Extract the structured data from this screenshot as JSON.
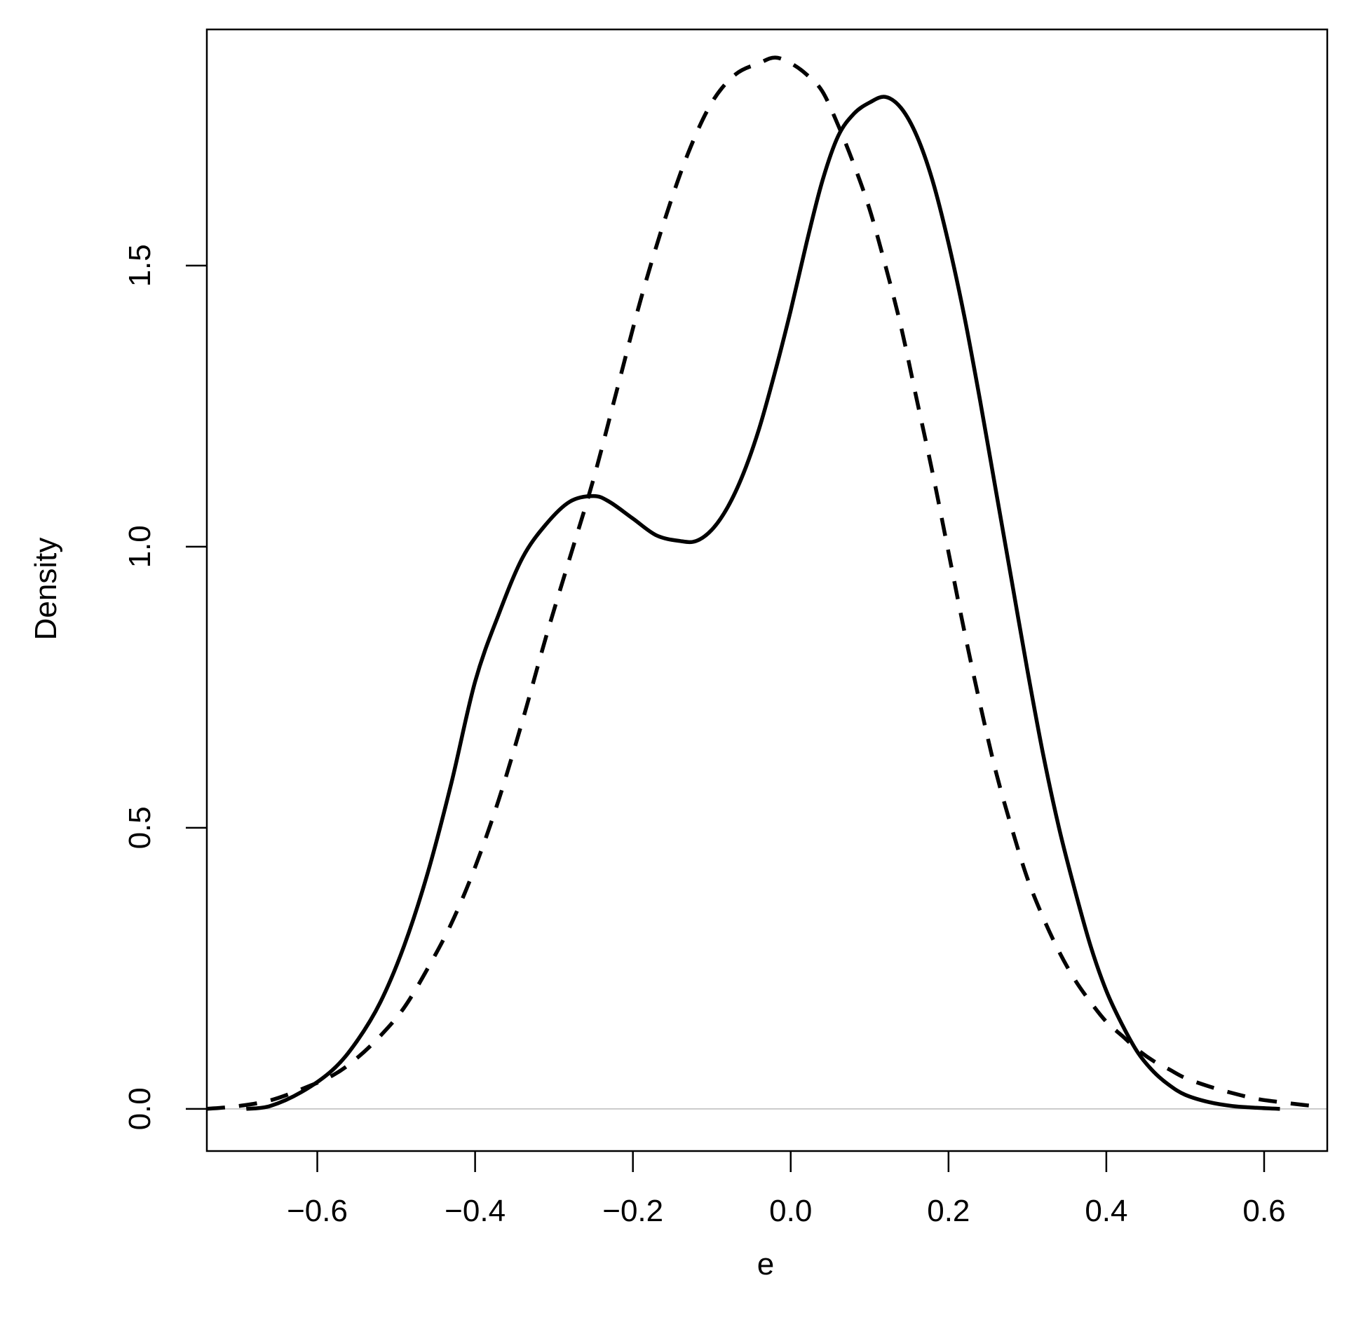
{
  "chart_data": {
    "type": "line",
    "title": "",
    "xlabel": "e",
    "ylabel": "Density",
    "xlim": [
      -0.74,
      0.68
    ],
    "ylim": [
      -0.075,
      1.92
    ],
    "x_ticks": [
      "−0.6",
      "−0.4",
      "−0.2",
      "0.0",
      "0.2",
      "0.4",
      "0.6"
    ],
    "x_tick_values": [
      -0.6,
      -0.4,
      -0.2,
      0.0,
      0.2,
      0.4,
      0.6
    ],
    "y_ticks": [
      "0.0",
      "0.5",
      "1.0",
      "1.5"
    ],
    "y_tick_values": [
      0.0,
      0.5,
      1.0,
      1.5
    ],
    "grid": false,
    "zero_line": true,
    "series": [
      {
        "line_style": "solid",
        "color": "#000000",
        "x": [
          -0.69,
          -0.66,
          -0.62,
          -0.58,
          -0.55,
          -0.52,
          -0.49,
          -0.46,
          -0.43,
          -0.4,
          -0.37,
          -0.34,
          -0.31,
          -0.28,
          -0.25,
          -0.23,
          -0.2,
          -0.17,
          -0.14,
          -0.12,
          -0.1,
          -0.08,
          -0.06,
          -0.04,
          -0.02,
          0.0,
          0.02,
          0.04,
          0.06,
          0.08,
          0.1,
          0.12,
          0.14,
          0.16,
          0.18,
          0.2,
          0.22,
          0.24,
          0.26,
          0.28,
          0.3,
          0.32,
          0.34,
          0.36,
          0.38,
          0.4,
          0.42,
          0.44,
          0.46,
          0.48,
          0.5,
          0.53,
          0.56,
          0.59,
          0.62
        ],
        "y": [
          0.0,
          0.005,
          0.03,
          0.07,
          0.12,
          0.19,
          0.29,
          0.42,
          0.58,
          0.76,
          0.88,
          0.98,
          1.04,
          1.08,
          1.09,
          1.08,
          1.05,
          1.02,
          1.01,
          1.01,
          1.03,
          1.07,
          1.13,
          1.21,
          1.31,
          1.42,
          1.54,
          1.65,
          1.73,
          1.77,
          1.79,
          1.8,
          1.78,
          1.73,
          1.65,
          1.54,
          1.41,
          1.26,
          1.1,
          0.94,
          0.78,
          0.63,
          0.5,
          0.39,
          0.29,
          0.21,
          0.15,
          0.1,
          0.066,
          0.042,
          0.025,
          0.012,
          0.005,
          0.002,
          0.0
        ]
      },
      {
        "line_style": "dashed",
        "color": "#000000",
        "x": [
          -0.74,
          -0.7,
          -0.66,
          -0.62,
          -0.58,
          -0.55,
          -0.52,
          -0.49,
          -0.46,
          -0.43,
          -0.4,
          -0.37,
          -0.34,
          -0.31,
          -0.28,
          -0.25,
          -0.22,
          -0.19,
          -0.16,
          -0.13,
          -0.1,
          -0.07,
          -0.04,
          -0.02,
          0.0,
          0.02,
          0.04,
          0.06,
          0.08,
          0.1,
          0.12,
          0.14,
          0.16,
          0.18,
          0.2,
          0.22,
          0.24,
          0.26,
          0.28,
          0.3,
          0.32,
          0.34,
          0.36,
          0.38,
          0.4,
          0.42,
          0.44,
          0.46,
          0.48,
          0.5,
          0.53,
          0.56,
          0.59,
          0.62,
          0.65,
          0.67
        ],
        "y": [
          0.0,
          0.005,
          0.015,
          0.035,
          0.06,
          0.09,
          0.13,
          0.18,
          0.25,
          0.33,
          0.43,
          0.55,
          0.69,
          0.84,
          0.98,
          1.12,
          1.28,
          1.44,
          1.58,
          1.7,
          1.79,
          1.84,
          1.86,
          1.87,
          1.86,
          1.84,
          1.81,
          1.75,
          1.68,
          1.6,
          1.5,
          1.39,
          1.26,
          1.13,
          0.99,
          0.85,
          0.72,
          0.6,
          0.5,
          0.41,
          0.34,
          0.28,
          0.23,
          0.19,
          0.155,
          0.13,
          0.105,
          0.085,
          0.07,
          0.055,
          0.04,
          0.028,
          0.018,
          0.012,
          0.007,
          0.004
        ]
      }
    ]
  }
}
